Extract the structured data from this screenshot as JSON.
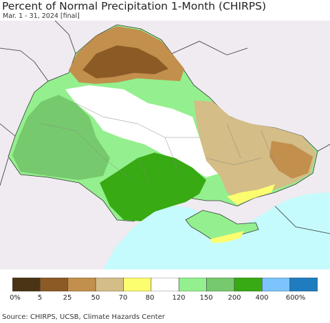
{
  "header": {
    "title": "Percent of Normal Precipitation 1-Month (CHIRPS)",
    "subtitle": "Mar. 1 - 31, 2024 [final]"
  },
  "legend": {
    "colors": [
      "#4b3415",
      "#8b5a25",
      "#c28f4c",
      "#d4bd86",
      "#fdfd70",
      "#ffffff",
      "#94f08e",
      "#76c96c",
      "#38aa13",
      "#7cc4fb",
      "#1f7dbf"
    ],
    "labels": [
      "0%",
      "5",
      "25",
      "50",
      "70",
      "80",
      "120",
      "150",
      "200",
      "400",
      "600%"
    ]
  },
  "colors": {
    "sea": "#c5fbfd",
    "outside_land": "#efebf0",
    "border": "#333333"
  },
  "footer": {
    "source": "Source: CHIRPS, UCSB, Climate Hazards Center"
  }
}
